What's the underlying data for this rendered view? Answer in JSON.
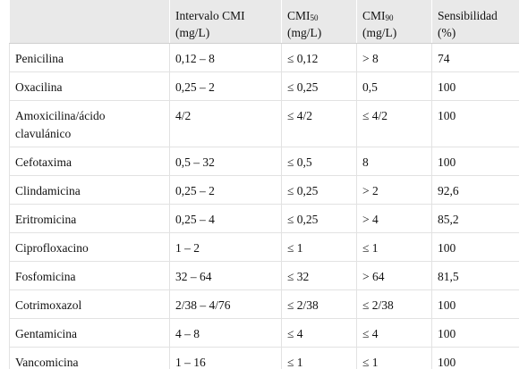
{
  "table": {
    "headers": [
      {
        "line1": "",
        "line2": ""
      },
      {
        "line1": "Intervalo CMI",
        "line2": "(mg/L)"
      },
      {
        "line1": "CMI",
        "sub": "50",
        "line2": "(mg/L)"
      },
      {
        "line1": "CMI",
        "sub": "90",
        "line2": "(mg/L)"
      },
      {
        "line1": "Sensibilidad",
        "line2": "(%)"
      }
    ],
    "rows": [
      [
        "Penicilina",
        "0,12 – 8",
        "≤ 0,12",
        "> 8",
        "74"
      ],
      [
        "Oxacilina",
        "0,25 – 2",
        "≤ 0,25",
        "0,5",
        "100"
      ],
      [
        "Amoxicilina/ácido clavulánico",
        "4/2",
        "≤ 4/2",
        "≤ 4/2",
        "100"
      ],
      [
        "Cefotaxima",
        "0,5 – 32",
        "≤ 0,5",
        "8",
        "100"
      ],
      [
        "Clindamicina",
        "0,25 – 2",
        "≤ 0,25",
        "> 2",
        "92,6"
      ],
      [
        "Eritromicina",
        "0,25 – 4",
        "≤ 0,25",
        "> 4",
        "85,2"
      ],
      [
        "Ciprofloxacino",
        "1 – 2",
        "≤ 1",
        "≤ 1",
        "100"
      ],
      [
        "Fosfomicina",
        "32 – 64",
        "≤ 32",
        "> 64",
        "81,5"
      ],
      [
        "Cotrimoxazol",
        "2/38 – 4/76",
        "≤ 2/38",
        "≤ 2/38",
        "100"
      ],
      [
        "Gentamicina",
        "4 – 8",
        "≤ 4",
        "≤ 4",
        "100"
      ],
      [
        "Vancomicina",
        "1 – 16",
        "≤ 1",
        "≤ 1",
        "100"
      ]
    ]
  }
}
